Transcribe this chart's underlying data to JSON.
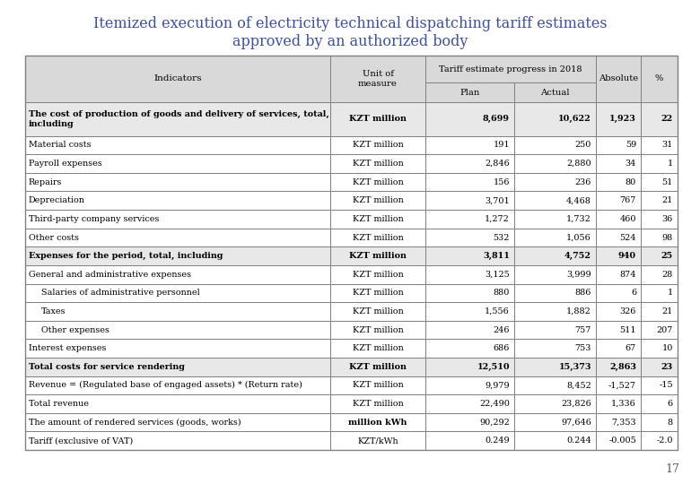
{
  "title_line1": "Itemized execution of electricity technical dispatching tariff estimates",
  "title_line2": "approved by an authorized body",
  "title_color": "#3d4fa0",
  "page_number": "17",
  "tariff_header": "Tariff estimate progress in 2018",
  "rows": [
    {
      "indent": 0,
      "bold": true,
      "unit_bold": true,
      "indicator": "The cost of production of goods and delivery of services, total,\nincluding",
      "unit": "KZT million",
      "plan": "8,699",
      "actual": "10,622",
      "absolute": "1,923",
      "pct": "22"
    },
    {
      "indent": 0,
      "bold": false,
      "unit_bold": false,
      "indicator": "Material costs",
      "unit": "KZT million",
      "plan": "191",
      "actual": "250",
      "absolute": "59",
      "pct": "31"
    },
    {
      "indent": 0,
      "bold": false,
      "unit_bold": false,
      "indicator": "Payroll expenses",
      "unit": "KZT million",
      "plan": "2,846",
      "actual": "2,880",
      "absolute": "34",
      "pct": "1"
    },
    {
      "indent": 0,
      "bold": false,
      "unit_bold": false,
      "indicator": "Repairs",
      "unit": "KZT million",
      "plan": "156",
      "actual": "236",
      "absolute": "80",
      "pct": "51"
    },
    {
      "indent": 0,
      "bold": false,
      "unit_bold": false,
      "indicator": "Depreciation",
      "unit": "KZT million",
      "plan": "3,701",
      "actual": "4,468",
      "absolute": "767",
      "pct": "21"
    },
    {
      "indent": 0,
      "bold": false,
      "unit_bold": false,
      "indicator": "Third-party company services",
      "unit": "KZT million",
      "plan": "1,272",
      "actual": "1,732",
      "absolute": "460",
      "pct": "36"
    },
    {
      "indent": 0,
      "bold": false,
      "unit_bold": false,
      "indicator": "Other costs",
      "unit": "KZT million",
      "plan": "532",
      "actual": "1,056",
      "absolute": "524",
      "pct": "98"
    },
    {
      "indent": 0,
      "bold": true,
      "unit_bold": true,
      "indicator": "Expenses for the period, total, including",
      "unit": "KZT million",
      "plan": "3,811",
      "actual": "4,752",
      "absolute": "940",
      "pct": "25"
    },
    {
      "indent": 0,
      "bold": false,
      "unit_bold": false,
      "indicator": "General and administrative expenses",
      "unit": "KZT million",
      "plan": "3,125",
      "actual": "3,999",
      "absolute": "874",
      "pct": "28"
    },
    {
      "indent": 1,
      "bold": false,
      "unit_bold": false,
      "indicator": "Salaries of administrative personnel",
      "unit": "KZT million",
      "plan": "880",
      "actual": "886",
      "absolute": "6",
      "pct": "1"
    },
    {
      "indent": 1,
      "bold": false,
      "unit_bold": false,
      "indicator": "Taxes",
      "unit": "KZT million",
      "plan": "1,556",
      "actual": "1,882",
      "absolute": "326",
      "pct": "21"
    },
    {
      "indent": 1,
      "bold": false,
      "unit_bold": false,
      "indicator": "Other expenses",
      "unit": "KZT million",
      "plan": "246",
      "actual": "757",
      "absolute": "511",
      "pct": "207"
    },
    {
      "indent": 0,
      "bold": false,
      "unit_bold": false,
      "indicator": "Interest expenses",
      "unit": "KZT million",
      "plan": "686",
      "actual": "753",
      "absolute": "67",
      "pct": "10"
    },
    {
      "indent": 0,
      "bold": true,
      "unit_bold": true,
      "indicator": "Total costs for service rendering",
      "unit": "KZT million",
      "plan": "12,510",
      "actual": "15,373",
      "absolute": "2,863",
      "pct": "23"
    },
    {
      "indent": 0,
      "bold": false,
      "unit_bold": false,
      "indicator": "Revenue = (Regulated base of engaged assets) * (Return rate)",
      "unit": "KZT million",
      "plan": "9,979",
      "actual": "8,452",
      "absolute": "-1,527",
      "pct": "-15"
    },
    {
      "indent": 0,
      "bold": false,
      "unit_bold": false,
      "indicator": "Total revenue",
      "unit": "KZT million",
      "plan": "22,490",
      "actual": "23,826",
      "absolute": "1,336",
      "pct": "6"
    },
    {
      "indent": 0,
      "bold": false,
      "unit_bold": true,
      "indicator": "The amount of rendered services (goods, works)",
      "unit": "million kWh",
      "plan": "90,292",
      "actual": "97,646",
      "absolute": "7,353",
      "pct": "8"
    },
    {
      "indent": 0,
      "bold": false,
      "unit_bold": false,
      "indicator": "Tariff (exclusive of VAT)",
      "unit": "KZT/kWh",
      "plan": "0.249",
      "actual": "0.244",
      "absolute": "-0.005",
      "pct": "-2.0"
    }
  ],
  "background_header": "#d9d9d9",
  "background_bold_row": "#e8e8e8",
  "border_color": "#808080",
  "title_fontsize": 11.5
}
